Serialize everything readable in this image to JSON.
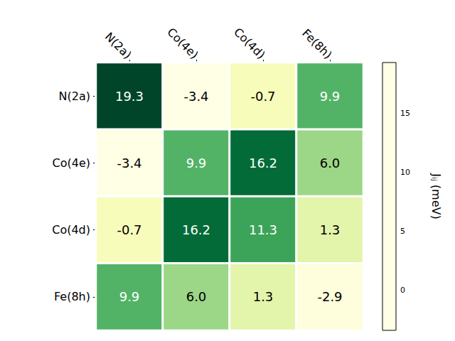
{
  "chart_data": {
    "type": "heatmap",
    "x_categories": [
      "N(2a)",
      "Co(4e)",
      "Co(4d)",
      "Fe(8h)"
    ],
    "y_categories": [
      "N(2a)",
      "Co(4e)",
      "Co(4d)",
      "Fe(8h)"
    ],
    "cells": [
      [
        19.3,
        -3.4,
        -0.7,
        9.9
      ],
      [
        -3.4,
        9.9,
        16.2,
        6.0
      ],
      [
        -0.7,
        16.2,
        11.3,
        1.3
      ],
      [
        9.9,
        6.0,
        1.3,
        -2.9
      ]
    ],
    "value_labels": [
      [
        "19.3",
        "-3.4",
        "-0.7",
        "9.9"
      ],
      [
        "-3.4",
        "9.9",
        "16.2",
        "6.0"
      ],
      [
        "-0.7",
        "16.2",
        "11.3",
        "1.3"
      ],
      [
        "9.9",
        "6.0",
        "1.3",
        "-2.9"
      ]
    ],
    "data_labels": true,
    "color": "YlGn",
    "colorbar": {
      "label": "Jᵢⱼ (meV)",
      "range": [
        -3.4,
        19.3
      ],
      "ticks": [
        0,
        5,
        10,
        15
      ]
    }
  }
}
